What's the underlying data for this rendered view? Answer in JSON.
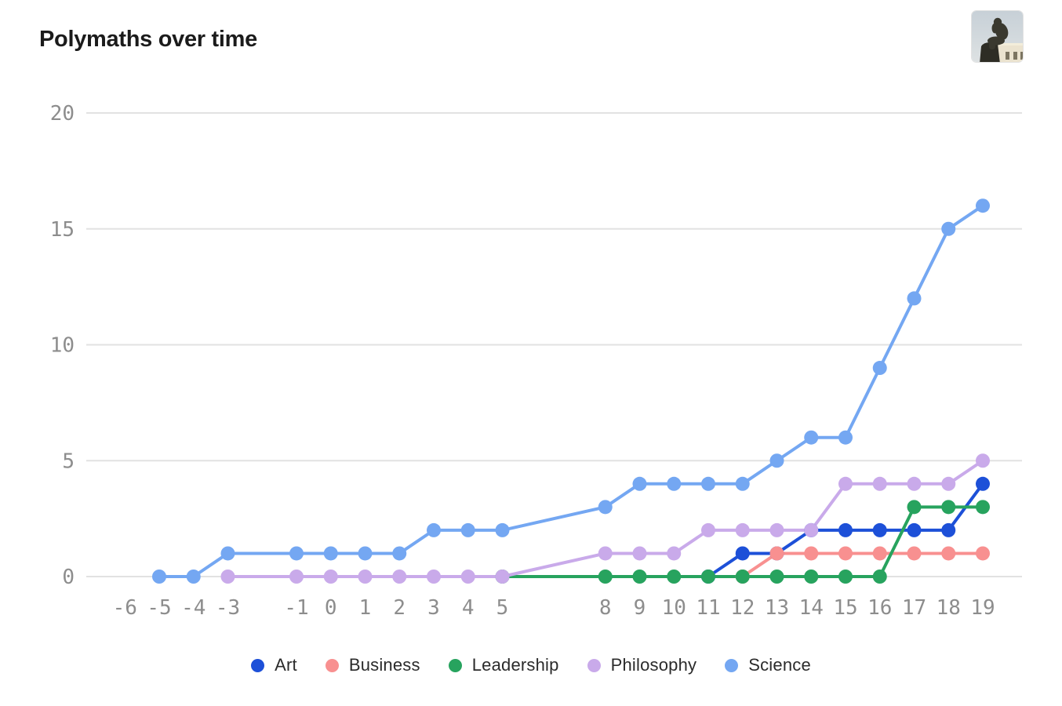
{
  "header": {
    "title": "Polymaths over time",
    "thumbnail": "the-thinker-statue-photo"
  },
  "chart_data": {
    "type": "line",
    "title": "Polymaths over time",
    "xlabel": "",
    "ylabel": "",
    "x_ticks": [
      -6,
      -5,
      -4,
      -3,
      -1,
      0,
      1,
      2,
      3,
      4,
      5,
      8,
      9,
      10,
      11,
      12,
      13,
      14,
      15,
      16,
      17,
      18,
      19
    ],
    "y_ticks": [
      0,
      5,
      10,
      15,
      20
    ],
    "xlim": [
      -6,
      19
    ],
    "ylim": [
      0,
      20
    ],
    "grid": "horizontal-only",
    "legend_position": "bottom-center",
    "series": [
      {
        "name": "Art",
        "color": "#1d50d8",
        "points": [
          [
            11,
            0
          ],
          [
            12,
            1
          ],
          [
            13,
            1
          ],
          [
            14,
            2
          ],
          [
            15,
            2
          ],
          [
            16,
            2
          ],
          [
            17,
            2
          ],
          [
            18,
            2
          ],
          [
            19,
            4
          ]
        ]
      },
      {
        "name": "Business",
        "color": "#f89090",
        "points": [
          [
            12,
            0
          ],
          [
            13,
            1
          ],
          [
            14,
            1
          ],
          [
            15,
            1
          ],
          [
            16,
            1
          ],
          [
            17,
            1
          ],
          [
            18,
            1
          ],
          [
            19,
            1
          ]
        ]
      },
      {
        "name": "Leadership",
        "color": "#27a35e",
        "points": [
          [
            5,
            0
          ],
          [
            8,
            0
          ],
          [
            9,
            0
          ],
          [
            10,
            0
          ],
          [
            11,
            0
          ],
          [
            12,
            0
          ],
          [
            13,
            0
          ],
          [
            14,
            0
          ],
          [
            15,
            0
          ],
          [
            16,
            0
          ],
          [
            17,
            3
          ],
          [
            18,
            3
          ],
          [
            19,
            3
          ]
        ]
      },
      {
        "name": "Philosophy",
        "color": "#c9aaea",
        "points": [
          [
            -3,
            0
          ],
          [
            -1,
            0
          ],
          [
            0,
            0
          ],
          [
            1,
            0
          ],
          [
            2,
            0
          ],
          [
            3,
            0
          ],
          [
            4,
            0
          ],
          [
            5,
            0
          ],
          [
            8,
            1
          ],
          [
            9,
            1
          ],
          [
            10,
            1
          ],
          [
            11,
            2
          ],
          [
            12,
            2
          ],
          [
            13,
            2
          ],
          [
            14,
            2
          ],
          [
            15,
            4
          ],
          [
            16,
            4
          ],
          [
            17,
            4
          ],
          [
            18,
            4
          ],
          [
            19,
            5
          ]
        ]
      },
      {
        "name": "Science",
        "color": "#74a7f2",
        "points": [
          [
            -5,
            0
          ],
          [
            -4,
            0
          ],
          [
            -3,
            1
          ],
          [
            -1,
            1
          ],
          [
            0,
            1
          ],
          [
            1,
            1
          ],
          [
            2,
            1
          ],
          [
            3,
            2
          ],
          [
            4,
            2
          ],
          [
            5,
            2
          ],
          [
            8,
            3
          ],
          [
            9,
            4
          ],
          [
            10,
            4
          ],
          [
            11,
            4
          ],
          [
            12,
            4
          ],
          [
            13,
            5
          ],
          [
            14,
            6
          ],
          [
            15,
            6
          ],
          [
            16,
            9
          ],
          [
            17,
            12
          ],
          [
            18,
            15
          ],
          [
            19,
            16
          ]
        ]
      }
    ]
  },
  "colors": {
    "grid": "#e2e2e2",
    "axis_label": "#8d8d8d",
    "title": "#1b1b1b",
    "legend_text": "#2b2b2b"
  }
}
